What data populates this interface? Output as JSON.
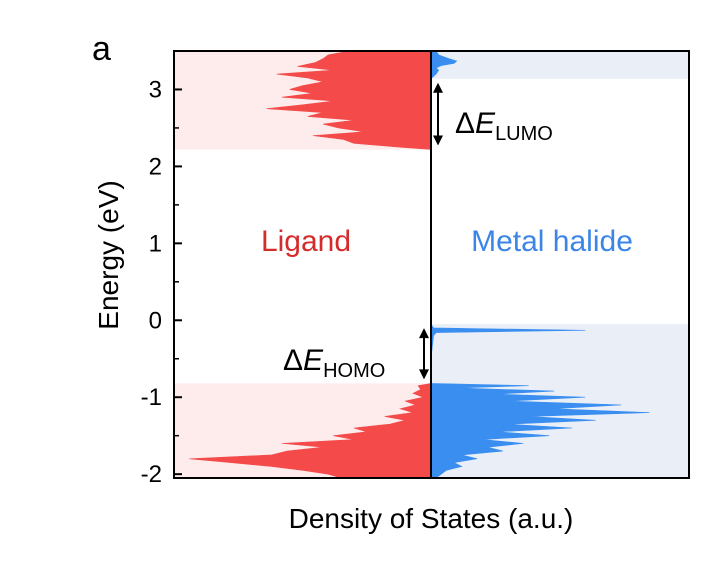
{
  "chart_data": {
    "type": "area",
    "panel_label": "a",
    "xlabel": "Density of States (a.u.)",
    "ylabel": "Energy (eV)",
    "ylim": [
      -2.05,
      3.5
    ],
    "yticks": [
      -2,
      -1,
      0,
      1,
      2,
      3
    ],
    "ytick_labels": [
      "-2",
      "-1",
      "0",
      "1",
      "2",
      "3"
    ],
    "minor_ticks": true,
    "grid": false,
    "colors": {
      "ligand": "#f44a4a",
      "ligand_shade": "#fdeceb",
      "metal_halide": "#3a8ef0",
      "metal_halide_shade": "#e9eef7",
      "ligand_text": "#d62b2b",
      "metal_halide_text": "#3a85e6"
    },
    "shaded_regions": {
      "ligand": [
        [
          2.22,
          3.5
        ],
        [
          -2.05,
          -0.82
        ]
      ],
      "metal_halide": [
        [
          3.14,
          3.5
        ],
        [
          -2.05,
          -0.05
        ]
      ]
    },
    "region_labels": {
      "left": "Ligand",
      "right": "Metal halide"
    },
    "annotations": {
      "lumo": {
        "delta": "Δ",
        "symbol": "E",
        "subscript": "LUMO",
        "from": 3.14,
        "to": 2.22
      },
      "homo": {
        "delta": "Δ",
        "symbol": "E",
        "subscript": "HOMO",
        "from": -0.05,
        "to": -0.82
      }
    },
    "series": [
      {
        "name": "Ligand",
        "side": "left",
        "energy": [
          3.5,
          3.45,
          3.4,
          3.35,
          3.3,
          3.25,
          3.2,
          3.15,
          3.1,
          3.05,
          3.0,
          2.95,
          2.9,
          2.85,
          2.8,
          2.75,
          2.7,
          2.65,
          2.6,
          2.55,
          2.5,
          2.45,
          2.4,
          2.35,
          2.3,
          2.25,
          2.22,
          -0.82,
          -0.85,
          -0.9,
          -0.95,
          -1.0,
          -1.05,
          -1.1,
          -1.15,
          -1.2,
          -1.25,
          -1.3,
          -1.35,
          -1.4,
          -1.45,
          -1.5,
          -1.55,
          -1.6,
          -1.65,
          -1.7,
          -1.75,
          -1.8,
          -1.85,
          -1.9,
          -1.95,
          -2.0,
          -2.05
        ],
        "dos": [
          0.32,
          0.4,
          0.42,
          0.45,
          0.52,
          0.38,
          0.6,
          0.48,
          0.42,
          0.5,
          0.55,
          0.46,
          0.58,
          0.38,
          0.5,
          0.64,
          0.42,
          0.48,
          0.3,
          0.42,
          0.36,
          0.26,
          0.46,
          0.34,
          0.3,
          0.12,
          0.0,
          0.0,
          0.05,
          0.04,
          0.07,
          0.03,
          0.1,
          0.06,
          0.12,
          0.07,
          0.18,
          0.1,
          0.16,
          0.3,
          0.25,
          0.38,
          0.3,
          0.58,
          0.42,
          0.56,
          0.62,
          0.94,
          0.78,
          0.62,
          0.5,
          0.4,
          0.35
        ]
      },
      {
        "name": "Metal halide",
        "side": "right",
        "energy": [
          3.5,
          3.45,
          3.4,
          3.37,
          3.34,
          3.31,
          3.28,
          3.25,
          3.2,
          3.14,
          -0.05,
          -0.1,
          -0.13,
          -0.16,
          -0.2,
          -0.5,
          -0.82,
          -0.85,
          -0.88,
          -0.92,
          -0.96,
          -1.0,
          -1.05,
          -1.1,
          -1.15,
          -1.2,
          -1.25,
          -1.3,
          -1.35,
          -1.4,
          -1.45,
          -1.5,
          -1.55,
          -1.6,
          -1.65,
          -1.7,
          -1.75,
          -1.8,
          -1.85,
          -1.9,
          -1.95,
          -2.0,
          -2.05
        ],
        "dos": [
          0.02,
          0.03,
          0.07,
          0.1,
          0.09,
          0.04,
          0.02,
          0.03,
          0.02,
          0.0,
          0.0,
          0.01,
          0.6,
          0.02,
          0.01,
          0.0,
          0.0,
          0.38,
          0.1,
          0.48,
          0.25,
          0.6,
          0.3,
          0.74,
          0.48,
          0.85,
          0.38,
          0.64,
          0.3,
          0.55,
          0.26,
          0.46,
          0.2,
          0.36,
          0.22,
          0.28,
          0.12,
          0.18,
          0.09,
          0.12,
          0.06,
          0.04,
          0.02
        ]
      }
    ]
  }
}
